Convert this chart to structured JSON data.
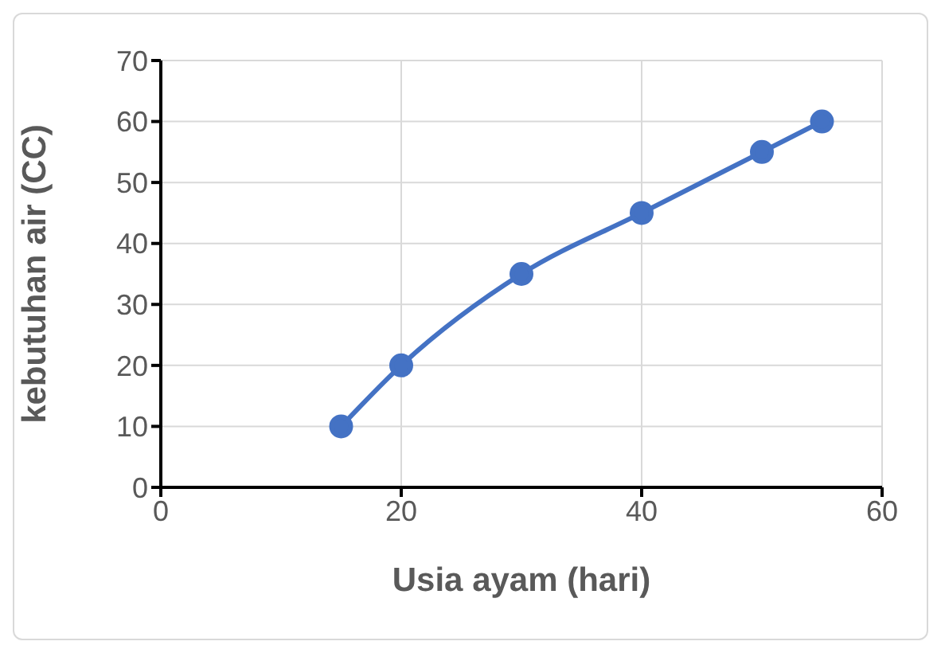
{
  "chart_data": {
    "type": "line",
    "xlabel": "Usia ayam (hari)",
    "ylabel": "kebutuhan air (CC)",
    "x": [
      15,
      20,
      30,
      40,
      50,
      55
    ],
    "series": [
      {
        "color": "#4472c4",
        "values": [
          10,
          20,
          35,
          45,
          55,
          60
        ]
      }
    ],
    "xlim": [
      0,
      60
    ],
    "xticks": [
      0,
      20,
      40,
      60
    ],
    "ylim": [
      0,
      70
    ],
    "yticks": [
      0,
      10,
      20,
      30,
      40,
      50,
      60,
      70
    ],
    "grid": true,
    "marker": "circle",
    "line_style": "solid",
    "legend": false
  }
}
